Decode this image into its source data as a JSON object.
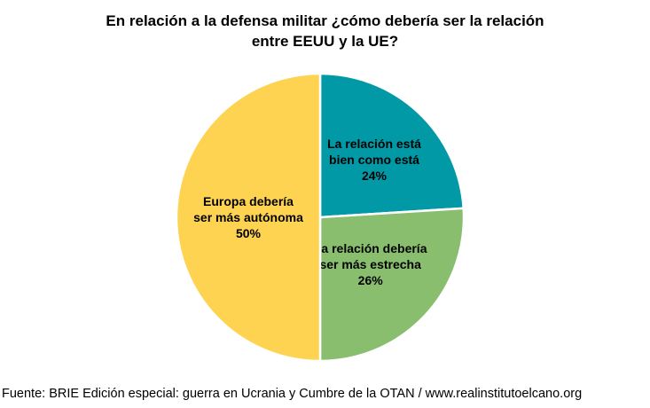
{
  "chart_data": {
    "type": "pie",
    "title_lines": [
      "En relación a la defensa militar ¿cómo debería ser la relación",
      "entre EEUU y la UE?"
    ],
    "slices": [
      {
        "label_lines": [
          "La relación está",
          "bien como está"
        ],
        "value": 24,
        "value_label": "24%",
        "color": "#0099A5"
      },
      {
        "label_lines": [
          "La relación debería",
          "ser más estrecha"
        ],
        "value": 26,
        "value_label": "26%",
        "color": "#88BE6E"
      },
      {
        "label_lines": [
          "Europa debería",
          "ser más autónoma"
        ],
        "value": 50,
        "value_label": "50%",
        "color": "#FDD351"
      }
    ],
    "legend": "none"
  },
  "source": "Fuente: BRIE Edición especial: guerra en Ucrania y Cumbre de la OTAN / www.realinstitutoelcano.org"
}
